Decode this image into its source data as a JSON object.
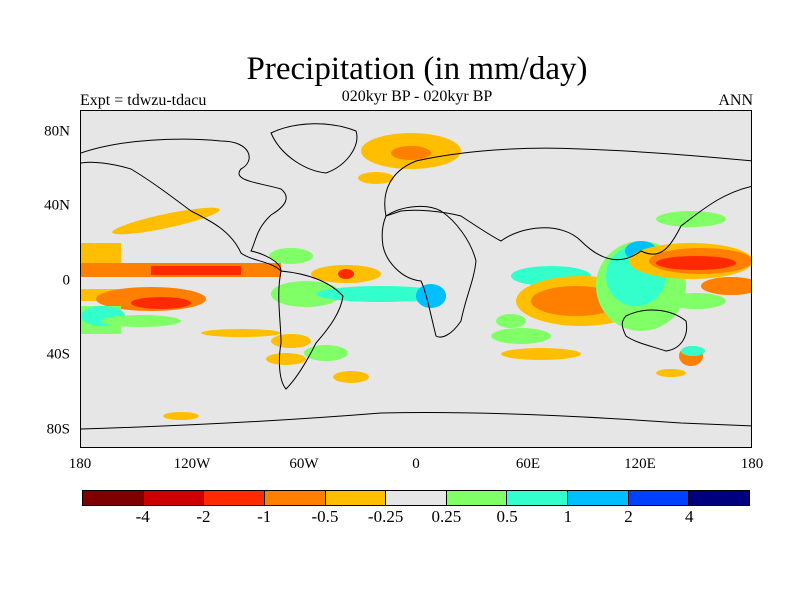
{
  "title": "Precipitation (in mm/day)",
  "subtitle": "020kyr BP - 020kyr BP",
  "left_label": "Expt = tdwzu-tdacu",
  "right_label": "ANN",
  "lat_labels": [
    "80N",
    "40N",
    "0",
    "40S",
    "80S"
  ],
  "lon_labels": [
    "180",
    "120W",
    "60W",
    "0",
    "60E",
    "120E",
    "180"
  ],
  "colorbar": {
    "colors": [
      "#7f0000",
      "#cc0000",
      "#ff2a00",
      "#ff7f00",
      "#ffbf00",
      "#e6e6e6",
      "#80ff66",
      "#33ffcc",
      "#00bfff",
      "#0040ff",
      "#00007f"
    ],
    "labels": [
      "-4",
      "-2",
      "-1",
      "-0.5",
      "-0.25",
      "0.25",
      "0.5",
      "1",
      "2",
      "4"
    ]
  }
}
